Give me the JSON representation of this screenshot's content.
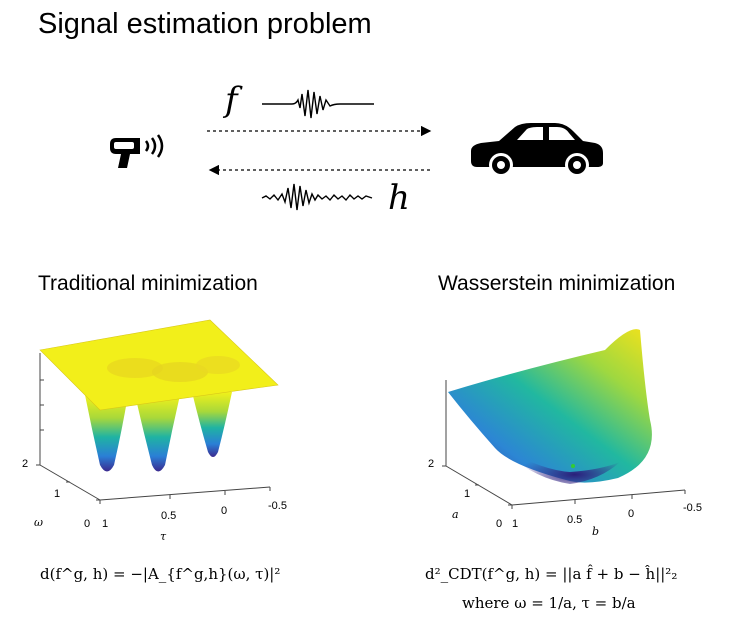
{
  "title": "Signal estimation problem",
  "signals": {
    "f": "f",
    "h": "h"
  },
  "left_panel": {
    "heading": "Traditional minimization",
    "axis_y_ticks": [
      "2",
      "1",
      "0"
    ],
    "axis_x_ticks": [
      "1",
      "0.5",
      "0",
      "-0.5"
    ],
    "axis_y_label": "ω",
    "axis_x_label": "τ",
    "equation": "d(f^g, h) = −|A_{f^g,h}(ω, τ)|²"
  },
  "right_panel": {
    "heading": "Wasserstein minimization",
    "axis_y_ticks": [
      "2",
      "1",
      "0"
    ],
    "axis_x_ticks": [
      "1",
      "0.5",
      "0",
      "-0.5"
    ],
    "axis_y_label": "a",
    "axis_x_label": "b",
    "equation": "d²_CDT(f^g, h) = ||a f̂ + b − ĥ||²₂",
    "equation2": "where ω = 1/a, τ = b/a"
  },
  "icons": [
    "radar-gun-icon",
    "car-icon"
  ],
  "colors": {
    "surface_top": "#f2f21a",
    "surface_bottom": "#3b2a8f",
    "surface_mid": "#1fb3a3",
    "minimum_marker": "#33cc33"
  }
}
